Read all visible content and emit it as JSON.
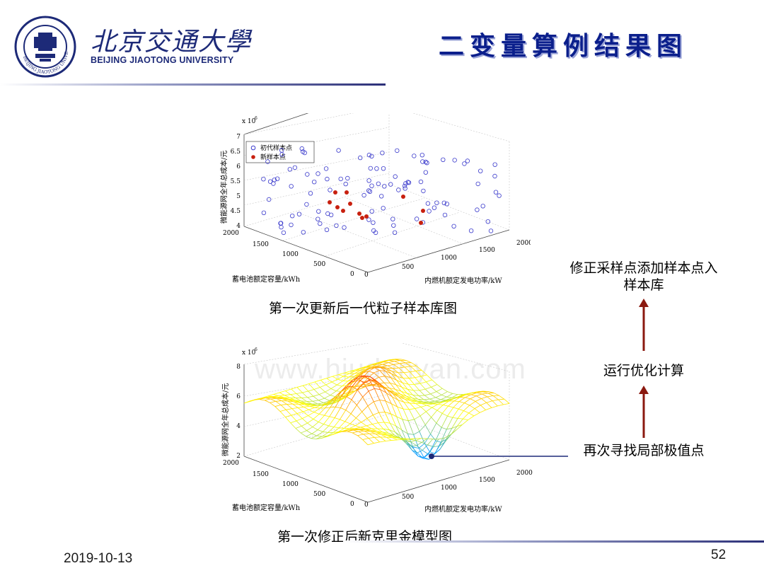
{
  "header": {
    "university_cn": "北京交通大學",
    "university_en": "BEIJING JIAOTONG UNIVERSITY",
    "slide_title": "二变量算例结果图",
    "logo_text": "BEIJING JIAOTONG UNIVERSITY 1896"
  },
  "figure1": {
    "caption": "第一次更新后一代粒子样本库图",
    "exponent": "x 10",
    "exponent_power": "6",
    "zlabel": "微能源网全年总成本/元",
    "xlabel": "蓄电池额定容量/kWh",
    "ylabel": "内燃机额定发电功率/kW",
    "z_ticks": [
      "7",
      "6.5",
      "6",
      "5.5",
      "5",
      "4.5",
      "4"
    ],
    "x_ticks": [
      "2000",
      "1500",
      "1000",
      "500",
      "0"
    ],
    "y_ticks": [
      "0",
      "500",
      "1000",
      "1500",
      "2000"
    ],
    "legend": [
      "初代样本点",
      "新样本点"
    ],
    "colors": {
      "initial": "#3a3acc",
      "new": "#c8200f"
    }
  },
  "figure2": {
    "caption": "第一次修正后新克里金模型图",
    "exponent": "x 10",
    "exponent_power": "6",
    "zlabel": "微能源网全年总成本/元",
    "xlabel": "蓄电池额定容量/kWh",
    "ylabel": "内燃机额定发电功率/kW",
    "z_ticks": [
      "8",
      "6",
      "4",
      "2"
    ],
    "x_ticks": [
      "2000",
      "1500",
      "1000",
      "500",
      "0"
    ],
    "y_ticks": [
      "0",
      "500",
      "1000",
      "1500",
      "2000"
    ]
  },
  "flow": {
    "step_top_line1": "修正采样点添加样本点入",
    "step_top_line2": "样本库",
    "step_mid": "运行优化计算",
    "step_bottom": "再次寻找局部极值点",
    "arrow_color": "#8b1a10"
  },
  "footer": {
    "date": "2019-10-13",
    "page": "52"
  },
  "watermark": "www.hiudunyan.com"
}
